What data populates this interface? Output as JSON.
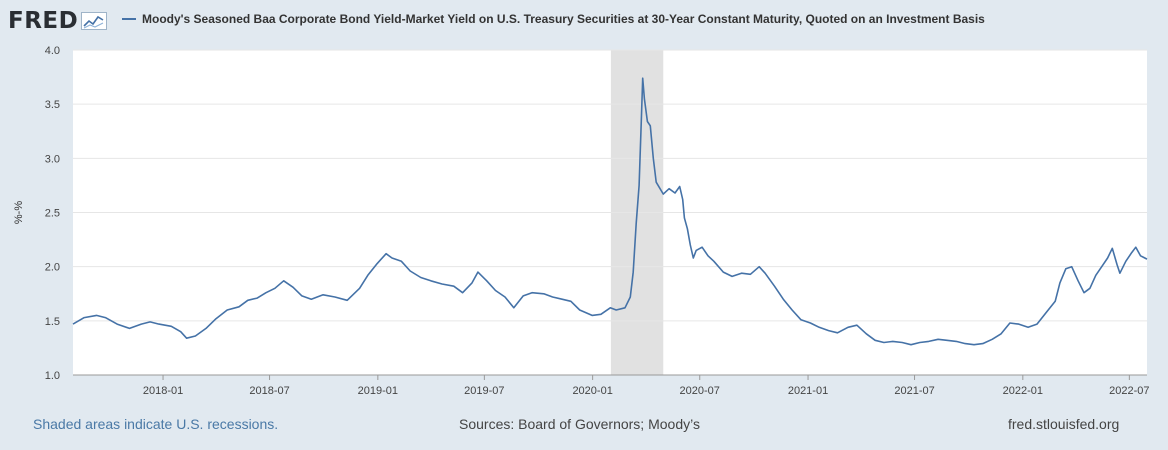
{
  "header": {
    "logo_text": "FRED",
    "series_title": "Moody's Seasoned Baa Corporate Bond Yield-Market Yield on U.S. Treasury Securities at 30-Year Constant Maturity, Quoted on an Investment Basis"
  },
  "footer": {
    "recession_note": "Shaded areas indicate U.S. recessions.",
    "sources": "Sources: Board of Governors; Moody’s",
    "site": "fred.stlouisfed.org"
  },
  "colors": {
    "line": "#4572a7",
    "recession": "#e1e1e1",
    "background": "#e1e9f0",
    "plot_bg": "#ffffff"
  },
  "chart_data": {
    "type": "line",
    "title": "",
    "xlabel": "",
    "ylabel": "%-%",
    "ylim": [
      1.0,
      4.0
    ],
    "yticks": [
      "1.0",
      "1.5",
      "2.0",
      "2.5",
      "3.0",
      "3.5",
      "4.0"
    ],
    "xlim": [
      "2017-08-01",
      "2022-07-31"
    ],
    "xticks": [
      "2018-01",
      "2018-07",
      "2019-01",
      "2019-07",
      "2020-01",
      "2020-07",
      "2021-01",
      "2021-07",
      "2022-01",
      "2022-07"
    ],
    "grid": true,
    "recessions": [
      {
        "start": "2020-02-01",
        "end": "2020-04-30"
      }
    ],
    "series": [
      {
        "name": "Moody's Seasoned Baa Corporate Bond Yield-Market Yield on U.S. Treasury Securities at 30-Year Constant Maturity, Quoted on an Investment Basis",
        "points": [
          [
            "2017-08-01",
            1.47
          ],
          [
            "2017-08-20",
            1.53
          ],
          [
            "2017-09-10",
            1.55
          ],
          [
            "2017-09-25",
            1.53
          ],
          [
            "2017-10-15",
            1.47
          ],
          [
            "2017-11-05",
            1.43
          ],
          [
            "2017-11-25",
            1.47
          ],
          [
            "2017-12-10",
            1.49
          ],
          [
            "2017-12-25",
            1.47
          ],
          [
            "2018-01-15",
            1.45
          ],
          [
            "2018-01-31",
            1.4
          ],
          [
            "2018-02-10",
            1.34
          ],
          [
            "2018-02-25",
            1.36
          ],
          [
            "2018-03-15",
            1.43
          ],
          [
            "2018-04-01",
            1.52
          ],
          [
            "2018-04-20",
            1.6
          ],
          [
            "2018-05-10",
            1.63
          ],
          [
            "2018-05-25",
            1.69
          ],
          [
            "2018-06-10",
            1.71
          ],
          [
            "2018-06-25",
            1.76
          ],
          [
            "2018-07-10",
            1.8
          ],
          [
            "2018-07-25",
            1.87
          ],
          [
            "2018-08-10",
            1.81
          ],
          [
            "2018-08-25",
            1.73
          ],
          [
            "2018-09-10",
            1.7
          ],
          [
            "2018-09-30",
            1.74
          ],
          [
            "2018-10-20",
            1.72
          ],
          [
            "2018-11-10",
            1.69
          ],
          [
            "2018-12-01",
            1.8
          ],
          [
            "2018-12-15",
            1.92
          ],
          [
            "2018-12-31",
            2.03
          ],
          [
            "2019-01-15",
            2.12
          ],
          [
            "2019-01-25",
            2.08
          ],
          [
            "2019-02-10",
            2.05
          ],
          [
            "2019-02-25",
            1.96
          ],
          [
            "2019-03-15",
            1.9
          ],
          [
            "2019-04-01",
            1.87
          ],
          [
            "2019-04-20",
            1.84
          ],
          [
            "2019-05-10",
            1.82
          ],
          [
            "2019-05-25",
            1.76
          ],
          [
            "2019-06-10",
            1.85
          ],
          [
            "2019-06-20",
            1.95
          ],
          [
            "2019-07-05",
            1.87
          ],
          [
            "2019-07-20",
            1.78
          ],
          [
            "2019-08-05",
            1.72
          ],
          [
            "2019-08-20",
            1.62
          ],
          [
            "2019-09-05",
            1.73
          ],
          [
            "2019-09-20",
            1.76
          ],
          [
            "2019-10-10",
            1.75
          ],
          [
            "2019-10-25",
            1.72
          ],
          [
            "2019-11-10",
            1.7
          ],
          [
            "2019-11-25",
            1.68
          ],
          [
            "2019-12-10",
            1.6
          ],
          [
            "2019-12-31",
            1.55
          ],
          [
            "2020-01-15",
            1.56
          ],
          [
            "2020-01-31",
            1.62
          ],
          [
            "2020-02-10",
            1.6
          ],
          [
            "2020-02-25",
            1.62
          ],
          [
            "2020-03-05",
            1.72
          ],
          [
            "2020-03-10",
            1.95
          ],
          [
            "2020-03-15",
            2.4
          ],
          [
            "2020-03-20",
            2.75
          ],
          [
            "2020-03-24",
            3.4
          ],
          [
            "2020-03-26",
            3.74
          ],
          [
            "2020-03-29",
            3.55
          ],
          [
            "2020-04-03",
            3.34
          ],
          [
            "2020-04-08",
            3.3
          ],
          [
            "2020-04-13",
            3.0
          ],
          [
            "2020-04-18",
            2.78
          ],
          [
            "2020-04-30",
            2.67
          ],
          [
            "2020-05-10",
            2.72
          ],
          [
            "2020-05-20",
            2.68
          ],
          [
            "2020-05-28",
            2.74
          ],
          [
            "2020-06-02",
            2.62
          ],
          [
            "2020-06-05",
            2.45
          ],
          [
            "2020-06-10",
            2.35
          ],
          [
            "2020-06-15",
            2.2
          ],
          [
            "2020-06-20",
            2.08
          ],
          [
            "2020-06-25",
            2.15
          ],
          [
            "2020-07-05",
            2.18
          ],
          [
            "2020-07-15",
            2.1
          ],
          [
            "2020-07-25",
            2.05
          ],
          [
            "2020-08-10",
            1.95
          ],
          [
            "2020-08-25",
            1.91
          ],
          [
            "2020-09-10",
            1.94
          ],
          [
            "2020-09-25",
            1.93
          ],
          [
            "2020-10-10",
            2.0
          ],
          [
            "2020-10-20",
            1.94
          ],
          [
            "2020-11-05",
            1.82
          ],
          [
            "2020-11-20",
            1.7
          ],
          [
            "2020-12-05",
            1.6
          ],
          [
            "2020-12-20",
            1.51
          ],
          [
            "2021-01-05",
            1.48
          ],
          [
            "2021-01-20",
            1.44
          ],
          [
            "2021-02-05",
            1.41
          ],
          [
            "2021-02-20",
            1.39
          ],
          [
            "2021-03-10",
            1.44
          ],
          [
            "2021-03-25",
            1.46
          ],
          [
            "2021-04-10",
            1.38
          ],
          [
            "2021-04-25",
            1.32
          ],
          [
            "2021-05-10",
            1.3
          ],
          [
            "2021-05-25",
            1.31
          ],
          [
            "2021-06-10",
            1.3
          ],
          [
            "2021-06-25",
            1.28
          ],
          [
            "2021-07-10",
            1.3
          ],
          [
            "2021-07-25",
            1.31
          ],
          [
            "2021-08-10",
            1.33
          ],
          [
            "2021-08-25",
            1.32
          ],
          [
            "2021-09-10",
            1.31
          ],
          [
            "2021-09-25",
            1.29
          ],
          [
            "2021-10-10",
            1.28
          ],
          [
            "2021-10-25",
            1.29
          ],
          [
            "2021-11-10",
            1.33
          ],
          [
            "2021-11-25",
            1.38
          ],
          [
            "2021-12-10",
            1.48
          ],
          [
            "2021-12-25",
            1.47
          ],
          [
            "2022-01-10",
            1.44
          ],
          [
            "2022-01-25",
            1.47
          ],
          [
            "2022-02-10",
            1.58
          ],
          [
            "2022-02-25",
            1.68
          ],
          [
            "2022-03-05",
            1.85
          ],
          [
            "2022-03-15",
            1.98
          ],
          [
            "2022-03-25",
            2.0
          ],
          [
            "2022-04-05",
            1.87
          ],
          [
            "2022-04-15",
            1.76
          ],
          [
            "2022-04-25",
            1.8
          ],
          [
            "2022-05-05",
            1.92
          ],
          [
            "2022-05-15",
            2.0
          ],
          [
            "2022-05-25",
            2.08
          ],
          [
            "2022-06-02",
            2.17
          ],
          [
            "2022-06-10",
            2.02
          ],
          [
            "2022-06-15",
            1.94
          ],
          [
            "2022-06-25",
            2.05
          ],
          [
            "2022-07-05",
            2.13
          ],
          [
            "2022-07-12",
            2.18
          ],
          [
            "2022-07-20",
            2.1
          ],
          [
            "2022-07-31",
            2.07
          ]
        ]
      }
    ]
  }
}
